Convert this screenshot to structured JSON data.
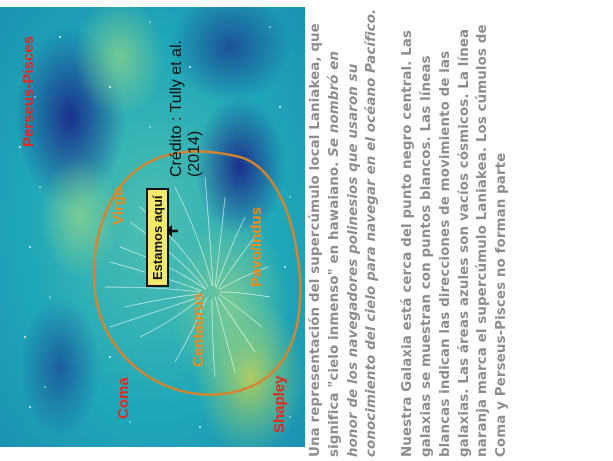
{
  "figure": {
    "labels": {
      "shapley": "Shapley",
      "centaurus": "Centaurus",
      "pavo_indus": "Pavo/Indus",
      "coma": "Coma",
      "virgo": "Virgo",
      "perseus_pisces": "Perseus-Pisces",
      "estamos_aqui": "Estamos aquí"
    },
    "credit": "Crédito : Tully et al. (2014)",
    "colors": {
      "background": "#1fa7b8",
      "supercluster_outline": "#d9842a",
      "label_red": "#e8261a",
      "label_orange": "#f08a1c",
      "marker_box": "#f4e96a"
    }
  },
  "caption": {
    "p1_a": "Una representación del supercúmulo local Laniakea, que significa \"cielo inmenso\" en hawaiano. ",
    "p1_b": "Se nombró en honor de los navegadores polinesios que usaron su conocimiento del cielo para navegar en el océano Pacífico.",
    "p2": "Nuestra Galaxia está cerca del punto negro central. Las galaxias se muestran con puntos blancos. Las líneas blancas indican las direcciones de movimiento de las galaxias. Las áreas azules son vacíos cósmicos. La línea naranja marca el supercúmulo Laniakea. Los cúmulos de Coma y Perseus-Pisces no forman parte"
  }
}
